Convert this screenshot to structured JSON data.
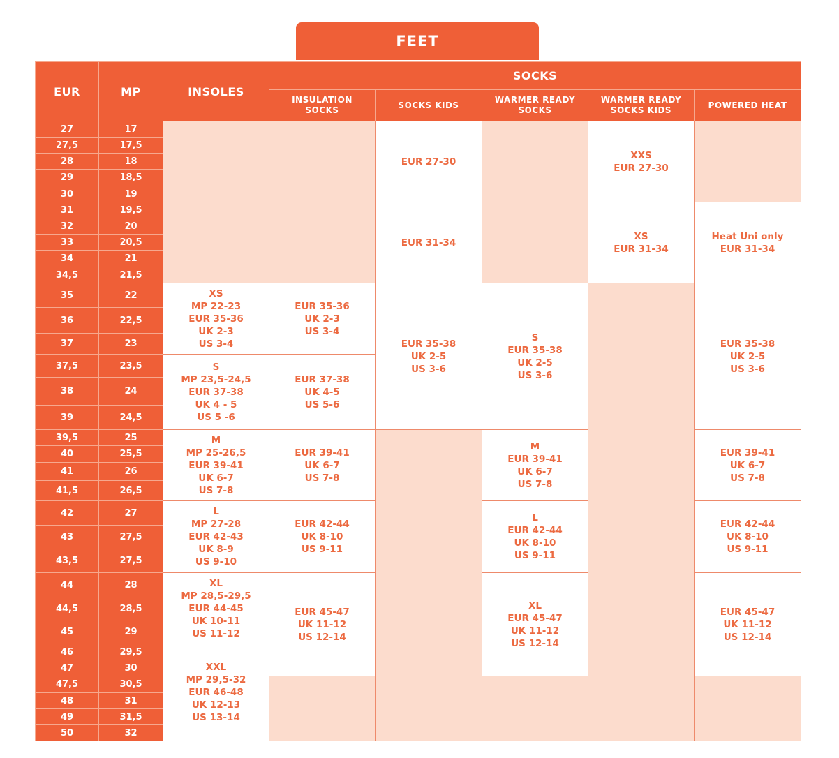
{
  "title": "FEET",
  "headers": {
    "eur": "EUR",
    "mp": "MP",
    "insoles": "INSOLES",
    "socks": "SOCKS",
    "socks_cols": [
      "INSULATION SOCKS",
      "SOCKS KIDS",
      "WARMER READY SOCKS",
      "WARMER READY SOCKS KIDS",
      "POWERED HEAT"
    ]
  },
  "colors": {
    "orange": "#EF5F37",
    "pink": "#FCDCCD",
    "text": "#EC6A41"
  },
  "sizes": [
    {
      "eur": "27",
      "mp": "17"
    },
    {
      "eur": "27,5",
      "mp": "17,5"
    },
    {
      "eur": "28",
      "mp": "18"
    },
    {
      "eur": "29",
      "mp": "18,5"
    },
    {
      "eur": "30",
      "mp": "19"
    },
    {
      "eur": "31",
      "mp": "19,5"
    },
    {
      "eur": "32",
      "mp": "20"
    },
    {
      "eur": "33",
      "mp": "20,5"
    },
    {
      "eur": "34",
      "mp": "21"
    },
    {
      "eur": "34,5",
      "mp": "21,5"
    },
    {
      "eur": "35",
      "mp": "22"
    },
    {
      "eur": "36",
      "mp": "22,5"
    },
    {
      "eur": "37",
      "mp": "23"
    },
    {
      "eur": "37,5",
      "mp": "23,5"
    },
    {
      "eur": "38",
      "mp": "24"
    },
    {
      "eur": "39",
      "mp": "24,5"
    },
    {
      "eur": "39,5",
      "mp": "25"
    },
    {
      "eur": "40",
      "mp": "25,5"
    },
    {
      "eur": "41",
      "mp": "26"
    },
    {
      "eur": "41,5",
      "mp": "26,5"
    },
    {
      "eur": "42",
      "mp": "27"
    },
    {
      "eur": "43",
      "mp": "27,5"
    },
    {
      "eur": "43,5",
      "mp": "27,5"
    },
    {
      "eur": "44",
      "mp": "28"
    },
    {
      "eur": "44,5",
      "mp": "28,5"
    },
    {
      "eur": "45",
      "mp": "29"
    },
    {
      "eur": "46",
      "mp": "29,5"
    },
    {
      "eur": "47",
      "mp": "30"
    },
    {
      "eur": "47,5",
      "mp": "30,5"
    },
    {
      "eur": "48",
      "mp": "31"
    },
    {
      "eur": "49",
      "mp": "31,5"
    },
    {
      "eur": "50",
      "mp": "32"
    }
  ],
  "columns": [
    {
      "name": "insoles",
      "blocks": [
        {
          "rows": 10,
          "lines": []
        },
        {
          "rows": 3,
          "lines": [
            "XS",
            "MP 22-23",
            "EUR 35-36",
            "UK 2-3",
            "US 3-4"
          ]
        },
        {
          "rows": 3,
          "lines": [
            "S",
            "MP 23,5-24,5",
            "EUR 37-38",
            "UK 4 - 5",
            "US 5 -6"
          ]
        },
        {
          "rows": 4,
          "lines": [
            "M",
            "MP 25-26,5",
            "EUR 39-41",
            "UK 6-7",
            "US 7-8"
          ]
        },
        {
          "rows": 3,
          "lines": [
            "L",
            "MP 27-28",
            "EUR 42-43",
            "UK 8-9",
            "US 9-10"
          ]
        },
        {
          "rows": 3,
          "lines": [
            "XL",
            "MP 28,5-29,5",
            "EUR 44-45",
            "UK 10-11",
            "US 11-12"
          ]
        },
        {
          "rows": 6,
          "lines": [
            "XXL",
            "MP 29,5-32",
            "EUR 46-48",
            "UK 12-13",
            "US 13-14"
          ]
        }
      ]
    },
    {
      "name": "insulation-socks",
      "blocks": [
        {
          "rows": 10,
          "lines": []
        },
        {
          "rows": 3,
          "lines": [
            "EUR 35-36",
            "UK 2-3",
            "US 3-4"
          ]
        },
        {
          "rows": 3,
          "lines": [
            "EUR 37-38",
            "UK 4-5",
            "US 5-6"
          ]
        },
        {
          "rows": 4,
          "lines": [
            "EUR 39-41",
            "UK 6-7",
            "US 7-8"
          ]
        },
        {
          "rows": 3,
          "lines": [
            "EUR 42-44",
            "UK 8-10",
            "US 9-11"
          ]
        },
        {
          "rows": 5,
          "lines": [
            "EUR 45-47",
            "UK 11-12",
            "US 12-14"
          ]
        },
        {
          "rows": 4,
          "lines": []
        }
      ]
    },
    {
      "name": "socks-kids",
      "blocks": [
        {
          "rows": 5,
          "lines": [
            "EUR 27-30"
          ]
        },
        {
          "rows": 5,
          "lines": [
            "EUR 31-34"
          ]
        },
        {
          "rows": 6,
          "lines": [
            "EUR 35-38",
            "UK 2-5",
            "US 3-6"
          ]
        },
        {
          "rows": 16,
          "lines": []
        }
      ]
    },
    {
      "name": "warmer-ready-socks",
      "blocks": [
        {
          "rows": 10,
          "lines": []
        },
        {
          "rows": 6,
          "lines": [
            "S",
            "EUR 35-38",
            "UK 2-5",
            "US 3-6"
          ]
        },
        {
          "rows": 4,
          "lines": [
            "M",
            "EUR 39-41",
            "UK 6-7",
            "US 7-8"
          ]
        },
        {
          "rows": 3,
          "lines": [
            "L",
            "EUR 42-44",
            "UK 8-10",
            "US 9-11"
          ]
        },
        {
          "rows": 5,
          "lines": [
            "XL",
            "EUR 45-47",
            "UK 11-12",
            "US 12-14"
          ]
        },
        {
          "rows": 4,
          "lines": []
        }
      ]
    },
    {
      "name": "warmer-ready-socks-kids",
      "blocks": [
        {
          "rows": 5,
          "lines": [
            "XXS",
            "EUR 27-30"
          ]
        },
        {
          "rows": 5,
          "lines": [
            "XS",
            "EUR 31-34"
          ]
        },
        {
          "rows": 22,
          "lines": []
        }
      ]
    },
    {
      "name": "powered-heat",
      "blocks": [
        {
          "rows": 5,
          "lines": []
        },
        {
          "rows": 5,
          "lines": [
            "Heat Uni only",
            "EUR 31-34"
          ]
        },
        {
          "rows": 6,
          "lines": [
            "EUR 35-38",
            "UK 2-5",
            "US 3-6"
          ]
        },
        {
          "rows": 4,
          "lines": [
            "EUR 39-41",
            "UK 6-7",
            "US 7-8"
          ]
        },
        {
          "rows": 3,
          "lines": [
            "EUR 42-44",
            "UK 8-10",
            "US 9-11"
          ]
        },
        {
          "rows": 5,
          "lines": [
            "EUR 45-47",
            "UK 11-12",
            "US 12-14"
          ]
        },
        {
          "rows": 4,
          "lines": []
        }
      ]
    }
  ]
}
